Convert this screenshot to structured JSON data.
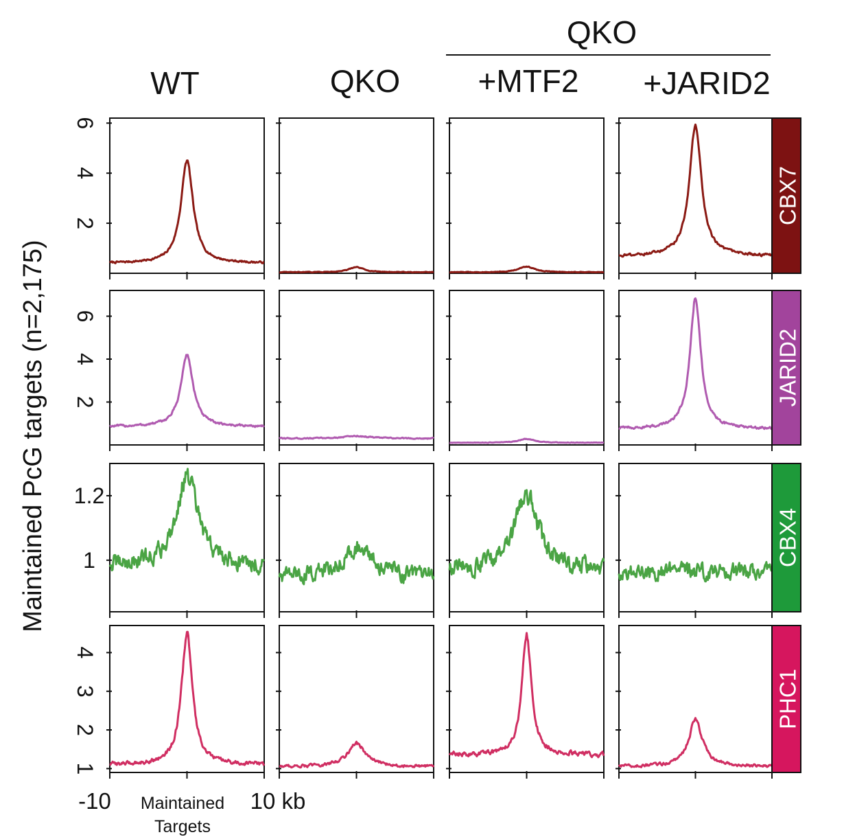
{
  "chart_data": {
    "type": "line",
    "title": "",
    "ylabel": "Maintained PcG targets  (n=2,175)",
    "xlabel_center": "Maintained Targets",
    "x_left_label": "-10",
    "x_right_label": "10 kb",
    "xlim": [
      -10,
      10
    ],
    "group_header": "QKO",
    "columns": [
      "WT",
      "QKO",
      "+MTF2",
      "+JARID2"
    ],
    "rows": [
      {
        "name": "CBX7",
        "color": "#8b1a14",
        "label_bg": "#7d1212",
        "ylim": [
          0,
          6.2
        ],
        "yticks": [
          2,
          4,
          6
        ],
        "ytick_labels": [
          "2",
          "4",
          "6"
        ],
        "series": [
          {
            "column": "WT",
            "baseline": 0.4,
            "peak": 4.5,
            "width": 0.95,
            "noise": 0.03
          },
          {
            "column": "QKO",
            "baseline": 0.04,
            "peak": 0.24,
            "width": 1.2,
            "noise": 0.01
          },
          {
            "column": "+MTF2",
            "baseline": 0.04,
            "peak": 0.27,
            "width": 1.2,
            "noise": 0.01
          },
          {
            "column": "+JARID2",
            "baseline": 0.68,
            "peak": 5.9,
            "width": 0.95,
            "noise": 0.04
          }
        ]
      },
      {
        "name": "JARID2",
        "color": "#b05bb0",
        "label_bg": "#a2449c",
        "ylim": [
          0,
          7.2
        ],
        "yticks": [
          2,
          4,
          6
        ],
        "ytick_labels": [
          "2",
          "4",
          "6"
        ],
        "series": [
          {
            "column": "WT",
            "baseline": 0.85,
            "peak": 4.2,
            "width": 0.95,
            "noise": 0.04
          },
          {
            "column": "QKO",
            "baseline": 0.3,
            "peak": 0.42,
            "width": 2.0,
            "noise": 0.02
          },
          {
            "column": "+MTF2",
            "baseline": 0.1,
            "peak": 0.28,
            "width": 1.2,
            "noise": 0.01
          },
          {
            "column": "+JARID2",
            "baseline": 0.75,
            "peak": 6.9,
            "width": 0.85,
            "noise": 0.05
          }
        ]
      },
      {
        "name": "CBX4",
        "color": "#4aa444",
        "label_bg": "#1e9a3a",
        "ylim": [
          0.84,
          1.3
        ],
        "yticks": [
          1.0,
          1.2
        ],
        "ytick_labels": [
          "1",
          "1.2"
        ],
        "series": [
          {
            "column": "WT",
            "baseline": 0.98,
            "peak": 1.26,
            "width": 1.7,
            "noise": 0.022
          },
          {
            "column": "QKO",
            "baseline": 0.95,
            "peak": 1.04,
            "width": 2.2,
            "noise": 0.02
          },
          {
            "column": "+MTF2",
            "baseline": 0.97,
            "peak": 1.21,
            "width": 1.7,
            "noise": 0.022
          },
          {
            "column": "+JARID2",
            "baseline": 0.965,
            "peak": 0.965,
            "width": 2.0,
            "noise": 0.02
          }
        ]
      },
      {
        "name": "PHC1",
        "color": "#d02e62",
        "label_bg": "#d6165e",
        "ylim": [
          0.9,
          4.7
        ],
        "yticks": [
          1,
          2,
          3,
          4
        ],
        "ytick_labels": [
          "1",
          "2",
          "3",
          "4"
        ],
        "series": [
          {
            "column": "WT",
            "baseline": 1.1,
            "peak": 4.5,
            "width": 0.85,
            "noise": 0.04
          },
          {
            "column": "QKO",
            "baseline": 1.05,
            "peak": 1.65,
            "width": 1.4,
            "noise": 0.03
          },
          {
            "column": "+MTF2",
            "baseline": 1.35,
            "peak": 4.45,
            "width": 0.75,
            "noise": 0.05
          },
          {
            "column": "+JARID2",
            "baseline": 1.05,
            "peak": 2.25,
            "width": 1.1,
            "noise": 0.03
          }
        ]
      }
    ]
  }
}
